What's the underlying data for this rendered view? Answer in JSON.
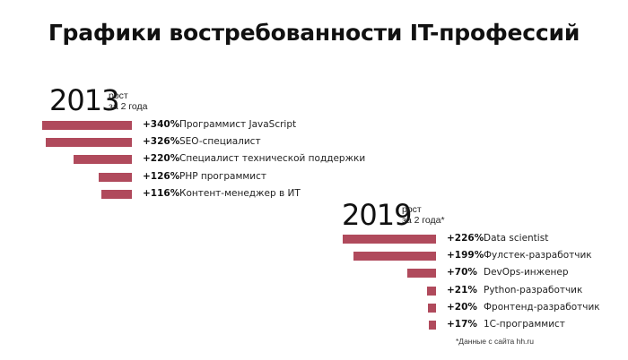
{
  "page": {
    "title": "Графики востребованности IT-профессий",
    "footnote": "*Данные с сайта hh.ru"
  },
  "chart_data": [
    {
      "type": "bar",
      "orientation": "horizontal",
      "year": "2013",
      "subtitle_line1": "рост",
      "subtitle_line2": "за 2 года",
      "categories": [
        "Программист JavaScript",
        "SEO-специалист",
        "Специалист технической поддержки",
        "PHP программист",
        "Контент-менеджер в ИТ"
      ],
      "values": [
        340,
        326,
        220,
        126,
        116
      ],
      "value_labels": [
        "+340%",
        "+326%",
        "+220%",
        "+126%",
        "+116%"
      ],
      "bar_color": "#b04a5c"
    },
    {
      "type": "bar",
      "orientation": "horizontal",
      "year": "2019",
      "subtitle_line1": "рост",
      "subtitle_line2": "за 2 года*",
      "categories": [
        "Data scientist",
        "Фулстек-разработчик",
        "DevOps-инженер",
        "Python-разработчик",
        "Фронтенд-разработчик",
        "1С-программист"
      ],
      "values": [
        226,
        199,
        70,
        21,
        20,
        17
      ],
      "value_labels": [
        "+226%",
        "+199%",
        "+70%",
        "+21%",
        "+20%",
        "+17%"
      ],
      "bar_color": "#b04a5c"
    }
  ]
}
